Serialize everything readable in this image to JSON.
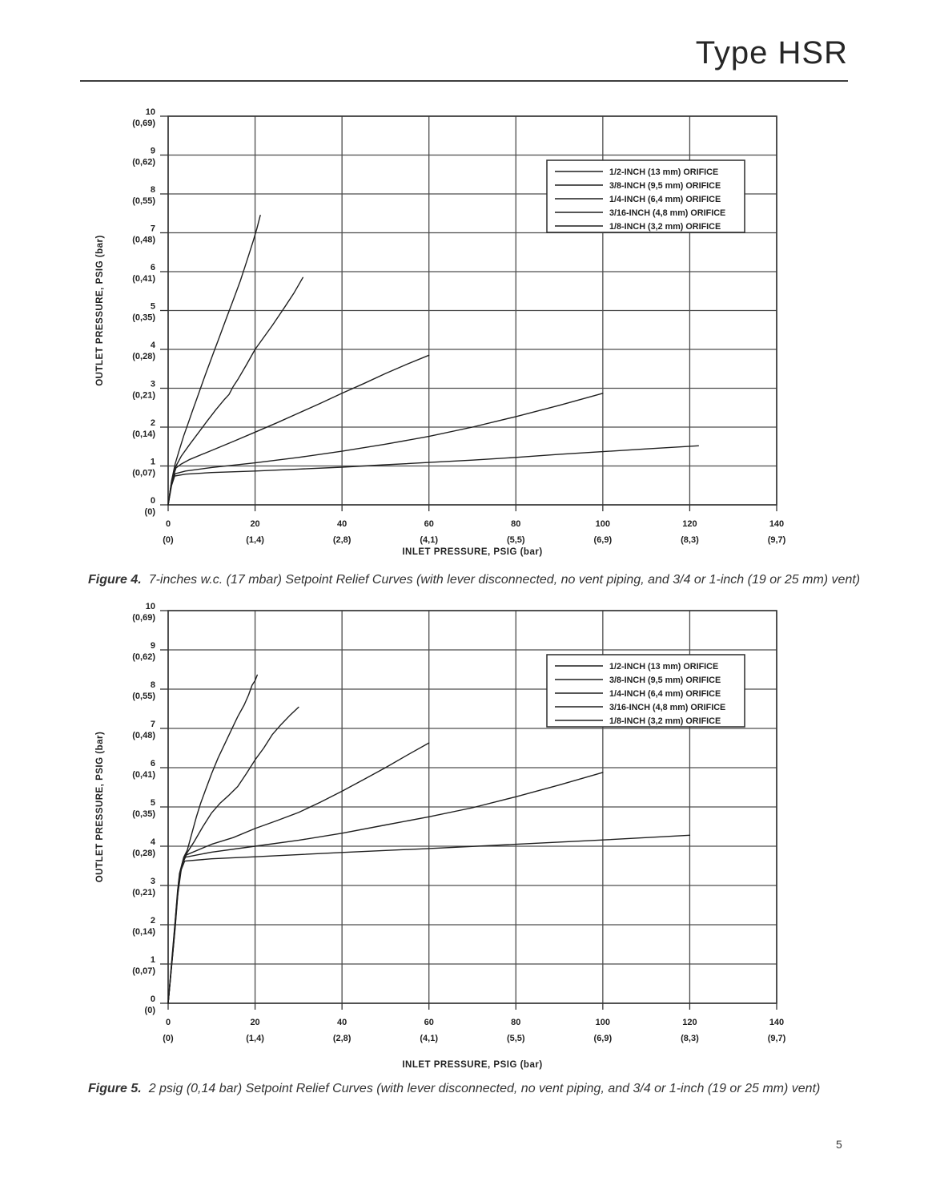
{
  "header": {
    "title": "Type HSR"
  },
  "footer": {
    "page_number": "5"
  },
  "figures": [
    {
      "label": "Figure 4.",
      "text": "7-inches w.c. (17 mbar) Setpoint Relief Curves (with lever disconnected, no vent piping, and 3/4 or 1-inch (19 or 25 mm) vent)"
    },
    {
      "label": "Figure 5.",
      "text": "2 psig (0,14 bar) Setpoint Relief Curves (with lever disconnected, no vent piping, and 3/4 or 1-inch (19 or 25 mm) vent)"
    }
  ],
  "colors": {
    "ink": "#1f1f1f",
    "grid": "#4d4d4d",
    "border": "#333333",
    "legend_border": "#2b2b2b"
  },
  "chart_data": [
    {
      "type": "line",
      "figure": "Figure 4",
      "title": "",
      "xlabel": "INLET PRESSURE, PSIG (bar)",
      "ylabel": "OUTLET PRESSURE, PSIG (bar)",
      "xlim": [
        0,
        140
      ],
      "ylim": [
        0,
        10
      ],
      "grid": true,
      "legend_position": "upper-right-inside",
      "x_ticks": [
        {
          "v": 0,
          "psig": "0",
          "bar": "(0)"
        },
        {
          "v": 20,
          "psig": "20",
          "bar": "(1,4)"
        },
        {
          "v": 40,
          "psig": "40",
          "bar": "(2,8)"
        },
        {
          "v": 60,
          "psig": "60",
          "bar": "(4,1)"
        },
        {
          "v": 80,
          "psig": "80",
          "bar": "(5,5)"
        },
        {
          "v": 100,
          "psig": "100",
          "bar": "(6,9)"
        },
        {
          "v": 120,
          "psig": "120",
          "bar": "(8,3)"
        },
        {
          "v": 140,
          "psig": "140",
          "bar": "(9,7)"
        }
      ],
      "y_ticks": [
        {
          "v": 10,
          "psig": "10",
          "bar": "(0,69)"
        },
        {
          "v": 9,
          "psig": "9",
          "bar": "(0,62)"
        },
        {
          "v": 8,
          "psig": "8",
          "bar": "(0,55)"
        },
        {
          "v": 7,
          "psig": "7",
          "bar": "(0,48)"
        },
        {
          "v": 6,
          "psig": "6",
          "bar": "(0,41)"
        },
        {
          "v": 5,
          "psig": "5",
          "bar": "(0,35)"
        },
        {
          "v": 4,
          "psig": "4",
          "bar": "(0,28)"
        },
        {
          "v": 3,
          "psig": "3",
          "bar": "(0,21)"
        },
        {
          "v": 2,
          "psig": "2",
          "bar": "(0,14)"
        },
        {
          "v": 1,
          "psig": "1",
          "bar": "(0,07)"
        },
        {
          "v": 0,
          "psig": "0",
          "bar": "(0)"
        }
      ],
      "legend": [
        "1/2-INCH (13 mm) ORIFICE",
        "3/8-INCH (9,5 mm) ORIFICE",
        "1/4-INCH (6,4 mm) ORIFICE",
        "3/16-INCH (4,8 mm) ORIFICE",
        "1/8-INCH (3,2 mm) ORIFICE"
      ],
      "series": [
        {
          "name": "1/2-INCH (13 mm) ORIFICE",
          "points": [
            [
              0,
              0
            ],
            [
              0.8,
              0.5
            ],
            [
              1.5,
              0.74
            ],
            [
              4,
              0.79
            ],
            [
              10,
              0.83
            ],
            [
              20,
              0.87
            ],
            [
              30,
              0.92
            ],
            [
              40,
              0.97
            ],
            [
              50,
              1.03
            ],
            [
              60,
              1.09
            ],
            [
              70,
              1.15
            ],
            [
              80,
              1.22
            ],
            [
              90,
              1.3
            ],
            [
              100,
              1.37
            ],
            [
              110,
              1.44
            ],
            [
              122,
              1.52
            ]
          ]
        },
        {
          "name": "3/8-INCH (9,5 mm) ORIFICE",
          "points": [
            [
              0,
              0
            ],
            [
              0.8,
              0.55
            ],
            [
              1.6,
              0.8
            ],
            [
              4,
              0.87
            ],
            [
              10,
              0.96
            ],
            [
              20,
              1.08
            ],
            [
              30,
              1.22
            ],
            [
              40,
              1.38
            ],
            [
              50,
              1.56
            ],
            [
              60,
              1.76
            ],
            [
              70,
              2.0
            ],
            [
              80,
              2.27
            ],
            [
              90,
              2.56
            ],
            [
              100,
              2.87
            ]
          ]
        },
        {
          "name": "1/4-INCH (6,4 mm) ORIFICE",
          "points": [
            [
              0,
              0
            ],
            [
              0.8,
              0.6
            ],
            [
              1.8,
              0.95
            ],
            [
              3,
              1.05
            ],
            [
              5,
              1.17
            ],
            [
              10,
              1.4
            ],
            [
              15,
              1.63
            ],
            [
              20,
              1.87
            ],
            [
              25,
              2.11
            ],
            [
              30,
              2.36
            ],
            [
              35,
              2.61
            ],
            [
              40,
              2.87
            ],
            [
              45,
              3.12
            ],
            [
              50,
              3.38
            ],
            [
              55,
              3.62
            ],
            [
              60,
              3.85
            ]
          ]
        },
        {
          "name": "3/16-INCH (4,8 mm) ORIFICE",
          "points": [
            [
              0,
              0
            ],
            [
              0.8,
              0.6
            ],
            [
              1.8,
              1.0
            ],
            [
              3,
              1.25
            ],
            [
              5,
              1.56
            ],
            [
              7,
              1.86
            ],
            [
              9,
              2.16
            ],
            [
              11,
              2.45
            ],
            [
              13,
              2.72
            ],
            [
              14,
              2.84
            ],
            [
              15,
              3.05
            ],
            [
              16,
              3.22
            ],
            [
              18,
              3.6
            ],
            [
              20,
              4.0
            ],
            [
              22,
              4.31
            ],
            [
              24,
              4.62
            ],
            [
              26,
              4.95
            ],
            [
              27,
              5.12
            ],
            [
              29,
              5.46
            ],
            [
              31,
              5.85
            ]
          ]
        },
        {
          "name": "1/8-INCH (3,2 mm) ORIFICE",
          "points": [
            [
              0,
              0
            ],
            [
              0.8,
              0.62
            ],
            [
              1.6,
              1.05
            ],
            [
              2.6,
              1.42
            ],
            [
              3.6,
              1.78
            ],
            [
              4.6,
              2.1
            ],
            [
              5.6,
              2.42
            ],
            [
              6.6,
              2.73
            ],
            [
              7.6,
              3.05
            ],
            [
              8.6,
              3.36
            ],
            [
              9.6,
              3.66
            ],
            [
              10.6,
              3.96
            ],
            [
              11.6,
              4.26
            ],
            [
              12.6,
              4.56
            ],
            [
              13.6,
              4.86
            ],
            [
              14.6,
              5.16
            ],
            [
              15.6,
              5.46
            ],
            [
              16.6,
              5.76
            ],
            [
              17.6,
              6.1
            ],
            [
              18.6,
              6.45
            ],
            [
              19.6,
              6.8
            ],
            [
              20.4,
              7.1
            ],
            [
              21.2,
              7.45
            ]
          ]
        }
      ]
    },
    {
      "type": "line",
      "figure": "Figure 5",
      "title": "",
      "xlabel": "INLET PRESSURE, PSIG (bar)",
      "ylabel": "OUTLET PRESSURE, PSIG (bar)",
      "xlim": [
        0,
        140
      ],
      "ylim": [
        0,
        10
      ],
      "grid": true,
      "legend_position": "upper-right-inside",
      "x_ticks": [
        {
          "v": 0,
          "psig": "0",
          "bar": "(0)"
        },
        {
          "v": 20,
          "psig": "20",
          "bar": "(1,4)"
        },
        {
          "v": 40,
          "psig": "40",
          "bar": "(2,8)"
        },
        {
          "v": 60,
          "psig": "60",
          "bar": "(4,1)"
        },
        {
          "v": 80,
          "psig": "80",
          "bar": "(5,5)"
        },
        {
          "v": 100,
          "psig": "100",
          "bar": "(6,9)"
        },
        {
          "v": 120,
          "psig": "120",
          "bar": "(8,3)"
        },
        {
          "v": 140,
          "psig": "140",
          "bar": "(9,7)"
        }
      ],
      "y_ticks": [
        {
          "v": 10,
          "psig": "10",
          "bar": "(0,69)"
        },
        {
          "v": 9,
          "psig": "9",
          "bar": "(0,62)"
        },
        {
          "v": 8,
          "psig": "8",
          "bar": "(0,55)"
        },
        {
          "v": 7,
          "psig": "7",
          "bar": "(0,48)"
        },
        {
          "v": 6,
          "psig": "6",
          "bar": "(0,41)"
        },
        {
          "v": 5,
          "psig": "5",
          "bar": "(0,35)"
        },
        {
          "v": 4,
          "psig": "4",
          "bar": "(0,28)"
        },
        {
          "v": 3,
          "psig": "3",
          "bar": "(0,21)"
        },
        {
          "v": 2,
          "psig": "2",
          "bar": "(0,14)"
        },
        {
          "v": 1,
          "psig": "1",
          "bar": "(0,07)"
        },
        {
          "v": 0,
          "psig": "0",
          "bar": "(0)"
        }
      ],
      "legend": [
        "1/2-INCH (13 mm) ORIFICE",
        "3/8-INCH (9,5 mm) ORIFICE",
        "1/4-INCH (6,4 mm) ORIFICE",
        "3/16-INCH (4,8 mm) ORIFICE",
        "1/8-INCH (3,2 mm) ORIFICE"
      ],
      "series": [
        {
          "name": "1/2-INCH (13 mm) ORIFICE",
          "points": [
            [
              0,
              0
            ],
            [
              1,
              1.3
            ],
            [
              2,
              2.6
            ],
            [
              3,
              3.4
            ],
            [
              3.8,
              3.62
            ],
            [
              10,
              3.68
            ],
            [
              20,
              3.73
            ],
            [
              40,
              3.84
            ],
            [
              60,
              3.94
            ],
            [
              80,
              4.05
            ],
            [
              100,
              4.16
            ],
            [
              120,
              4.28
            ]
          ]
        },
        {
          "name": "3/8-INCH (9,5 mm) ORIFICE",
          "points": [
            [
              0,
              0
            ],
            [
              1.2,
              1.5
            ],
            [
              2.2,
              2.9
            ],
            [
              3.2,
              3.55
            ],
            [
              4,
              3.72
            ],
            [
              10,
              3.85
            ],
            [
              20,
              4.0
            ],
            [
              30,
              4.15
            ],
            [
              40,
              4.33
            ],
            [
              50,
              4.54
            ],
            [
              60,
              4.75
            ],
            [
              70,
              4.98
            ],
            [
              80,
              5.26
            ],
            [
              90,
              5.56
            ],
            [
              100,
              5.88
            ]
          ]
        },
        {
          "name": "1/4-INCH (6,4 mm) ORIFICE",
          "points": [
            [
              0,
              0
            ],
            [
              1.4,
              1.7
            ],
            [
              2.4,
              3.1
            ],
            [
              3.4,
              3.6
            ],
            [
              4.2,
              3.78
            ],
            [
              10,
              4.05
            ],
            [
              15,
              4.22
            ],
            [
              20,
              4.45
            ],
            [
              25,
              4.65
            ],
            [
              30,
              4.86
            ],
            [
              35,
              5.12
            ],
            [
              40,
              5.4
            ],
            [
              45,
              5.7
            ],
            [
              50,
              6.0
            ],
            [
              55,
              6.32
            ],
            [
              60,
              6.63
            ]
          ]
        },
        {
          "name": "3/16-INCH (4,8 mm) ORIFICE",
          "points": [
            [
              0,
              0
            ],
            [
              1.5,
              1.8
            ],
            [
              2.5,
              3.2
            ],
            [
              3.5,
              3.65
            ],
            [
              4.3,
              3.82
            ],
            [
              6,
              4.12
            ],
            [
              8,
              4.5
            ],
            [
              10,
              4.85
            ],
            [
              12,
              5.1
            ],
            [
              14,
              5.3
            ],
            [
              16,
              5.52
            ],
            [
              18,
              5.85
            ],
            [
              20,
              6.2
            ],
            [
              22,
              6.5
            ],
            [
              24,
              6.85
            ],
            [
              26,
              7.1
            ],
            [
              28,
              7.33
            ],
            [
              30,
              7.54
            ]
          ]
        },
        {
          "name": "1/8-INCH (3,2 mm) ORIFICE",
          "points": [
            [
              0,
              0
            ],
            [
              1.6,
              1.9
            ],
            [
              2.6,
              3.3
            ],
            [
              3.6,
              3.72
            ],
            [
              4.4,
              3.9
            ],
            [
              5.5,
              4.35
            ],
            [
              6.5,
              4.75
            ],
            [
              7.5,
              5.1
            ],
            [
              8.5,
              5.4
            ],
            [
              10,
              5.85
            ],
            [
              11.5,
              6.25
            ],
            [
              13,
              6.6
            ],
            [
              14.5,
              6.95
            ],
            [
              16,
              7.3
            ],
            [
              17.5,
              7.6
            ],
            [
              18.5,
              7.85
            ],
            [
              19.3,
              8.1
            ],
            [
              20,
              8.22
            ],
            [
              20.5,
              8.36
            ]
          ]
        }
      ]
    }
  ]
}
